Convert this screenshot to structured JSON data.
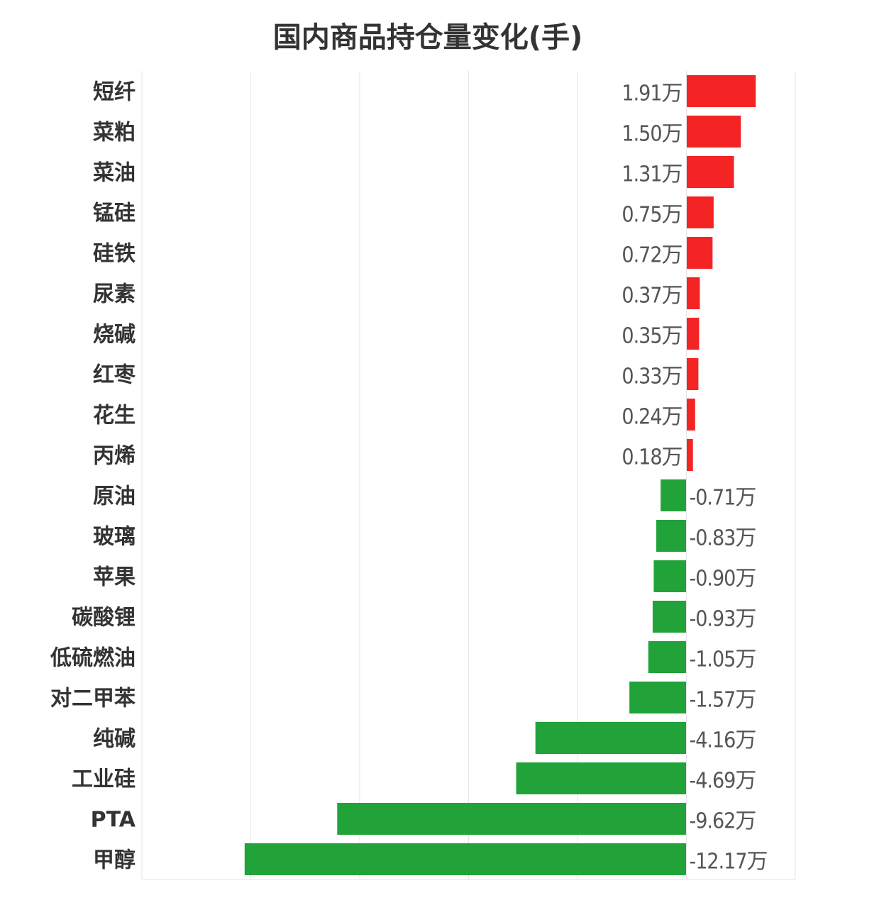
{
  "chart_data": {
    "type": "bar",
    "orientation": "horizontal",
    "title": "国内商品持仓量变化(手)",
    "unit_suffix": "万",
    "categories": [
      "短纤",
      "菜粕",
      "菜油",
      "锰硅",
      "硅铁",
      "尿素",
      "烧碱",
      "红枣",
      "花生",
      "丙烯",
      "原油",
      "玻璃",
      "苹果",
      "碳酸锂",
      "低硫燃油",
      "对二甲苯",
      "纯碱",
      "工业硅",
      "PTA",
      "甲醇"
    ],
    "values": [
      1.91,
      1.5,
      1.31,
      0.75,
      0.72,
      0.37,
      0.35,
      0.33,
      0.24,
      0.18,
      -0.71,
      -0.83,
      -0.9,
      -0.93,
      -1.05,
      -1.57,
      -4.16,
      -4.69,
      -9.62,
      -12.17
    ],
    "xlim": [
      -15,
      3
    ],
    "grid": true,
    "grid_step": 3,
    "x_tick_labels_shown": false,
    "legend": "none",
    "colors": {
      "positive": "#f52424",
      "negative": "#21a33a",
      "grid": "#e6e6e6",
      "label": "#333333",
      "value_label": "#555555"
    }
  }
}
